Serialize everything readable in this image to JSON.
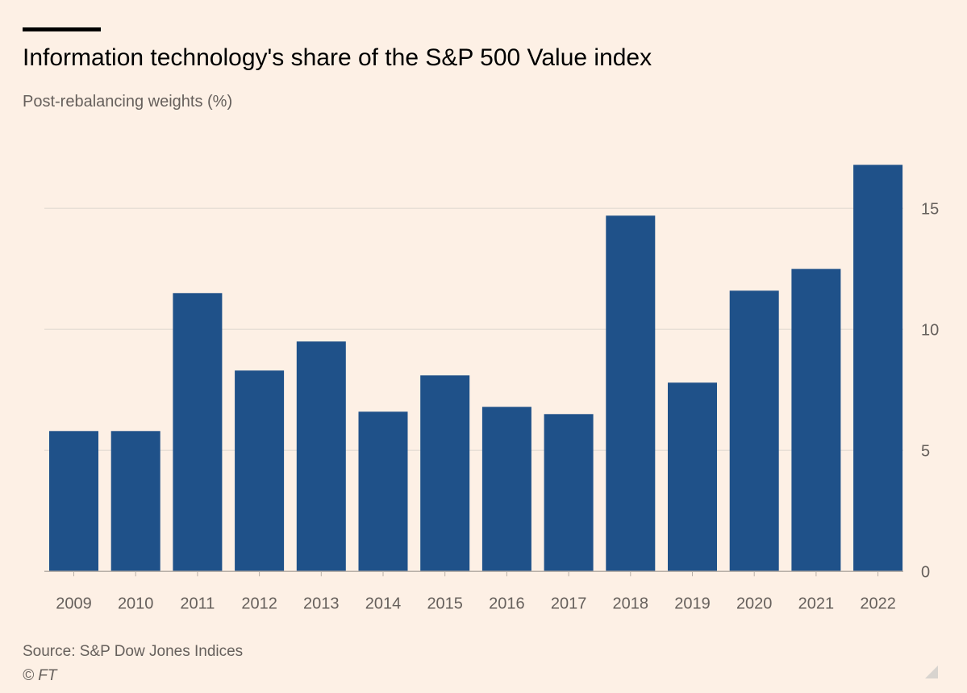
{
  "header": {
    "title": "Information technology's share of the S&P 500 Value index",
    "subtitle": "Post-rebalancing weights (%)"
  },
  "footer": {
    "source": "Source: S&P Dow Jones Indices",
    "credit": "© FT"
  },
  "colors": {
    "bar": "#1f5189",
    "background": "#fdf0e5",
    "grid": "#e8dfd6"
  },
  "chart_data": {
    "type": "bar",
    "title": "Information technology's share of the S&P 500 Value index",
    "subtitle": "Post-rebalancing weights (%)",
    "categories": [
      "2009",
      "2010",
      "2011",
      "2012",
      "2013",
      "2014",
      "2015",
      "2016",
      "2017",
      "2018",
      "2019",
      "2020",
      "2021",
      "2022"
    ],
    "values": [
      5.8,
      5.8,
      11.5,
      8.3,
      9.5,
      6.6,
      8.1,
      6.8,
      6.5,
      14.7,
      7.8,
      11.6,
      12.5,
      16.8
    ],
    "ylim": [
      0,
      17
    ],
    "yticks": [
      0,
      5,
      10,
      15
    ],
    "yaxis_position": "right",
    "grid": true,
    "xlabel": "",
    "ylabel": ""
  }
}
